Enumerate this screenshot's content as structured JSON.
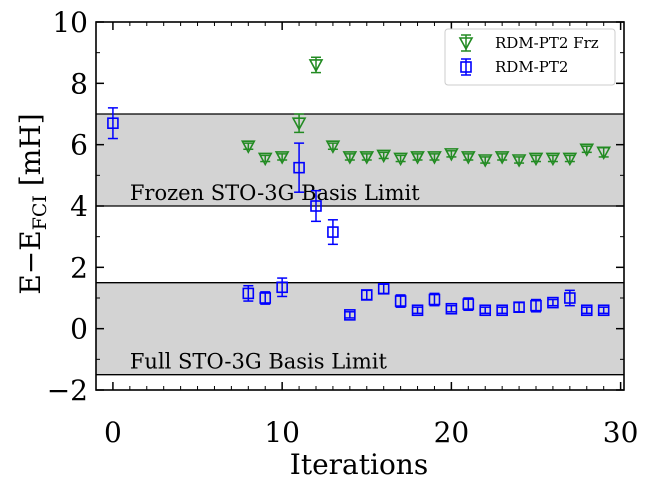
{
  "chart_data": {
    "type": "scatter",
    "xlabel": "Iterations",
    "ylabel": {
      "main": "E−E",
      "sub": "FCI",
      "unit": " [mH]"
    },
    "xlim": [
      -1,
      30.2
    ],
    "ylim": [
      -2,
      10
    ],
    "xticks": [
      0,
      10,
      20,
      30
    ],
    "yticks": [
      -2,
      0,
      2,
      4,
      6,
      8,
      10
    ],
    "ytick_labels": [
      "−2",
      "0",
      "2",
      "4",
      "6",
      "8",
      "10"
    ],
    "grid": false,
    "legend_position": "top-right",
    "bands": [
      {
        "label": "Frozen STO-3G Basis Limit",
        "ymin": 4.0,
        "ymax": 7.0,
        "color": "#d3d3d3"
      },
      {
        "label": "Full STO-3G Basis Limit",
        "ymin": -1.5,
        "ymax": 1.5,
        "color": "#d3d3d3"
      }
    ],
    "series": [
      {
        "name": "RDM-PT2 Frz",
        "color": "#228b22",
        "marker": "triangle-down",
        "x": [
          8,
          9,
          10,
          11,
          12,
          13,
          14,
          15,
          16,
          17,
          18,
          19,
          20,
          21,
          22,
          23,
          24,
          25,
          26,
          27,
          28,
          29
        ],
        "y": [
          5.95,
          5.55,
          5.6,
          6.7,
          8.6,
          5.95,
          5.6,
          5.6,
          5.65,
          5.55,
          5.6,
          5.6,
          5.7,
          5.6,
          5.5,
          5.6,
          5.5,
          5.55,
          5.55,
          5.55,
          5.85,
          5.75
        ],
        "err": [
          0.1,
          0.1,
          0.1,
          0.3,
          0.25,
          0.1,
          0.1,
          0.1,
          0.1,
          0.1,
          0.1,
          0.1,
          0.1,
          0.1,
          0.1,
          0.1,
          0.1,
          0.1,
          0.1,
          0.1,
          0.1,
          0.15
        ]
      },
      {
        "name": "RDM-PT2",
        "color": "#0000ff",
        "marker": "square",
        "x": [
          0,
          8,
          9,
          10,
          11,
          12,
          13,
          14,
          15,
          16,
          17,
          18,
          19,
          20,
          21,
          22,
          23,
          24,
          25,
          26,
          27,
          28,
          29
        ],
        "y": [
          6.7,
          1.15,
          1.0,
          1.35,
          5.25,
          4.0,
          3.15,
          0.45,
          1.1,
          1.3,
          0.9,
          0.6,
          0.95,
          0.65,
          0.8,
          0.6,
          0.6,
          0.7,
          0.75,
          0.85,
          1.0,
          0.6,
          0.6
        ],
        "err": [
          0.5,
          0.25,
          0.2,
          0.3,
          0.8,
          0.5,
          0.4,
          0.1,
          0.15,
          0.15,
          0.2,
          0.1,
          0.2,
          0.1,
          0.2,
          0.1,
          0.1,
          0.15,
          0.2,
          0.1,
          0.25,
          0.1,
          0.1
        ]
      }
    ]
  }
}
